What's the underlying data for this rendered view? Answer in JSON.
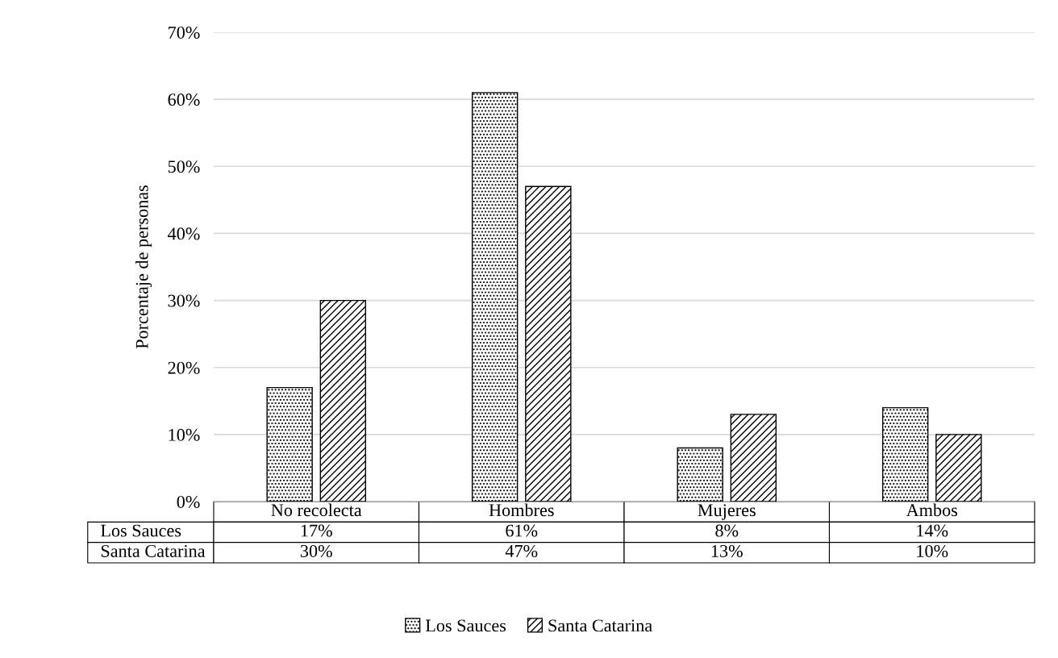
{
  "chart_data": {
    "type": "bar",
    "ylabel": "Porcentaje de personas",
    "categories": [
      "No recolecta",
      "Hombres",
      "Mujeres",
      "Ambos"
    ],
    "series": [
      {
        "name": "Los Sauces",
        "color": "#000000",
        "values": [
          17,
          61,
          8,
          14
        ],
        "value_labels": [
          "17%",
          "61%",
          "8%",
          "14%"
        ]
      },
      {
        "name": "Santa Catarina",
        "color": "#000000",
        "values": [
          30,
          47,
          13,
          10
        ],
        "value_labels": [
          "30%",
          "47%",
          "13%",
          "10%"
        ]
      }
    ],
    "ylim": [
      0,
      70
    ],
    "yticks": [
      {
        "value": 0,
        "label": "0%"
      },
      {
        "value": 10,
        "label": "10%"
      },
      {
        "value": 20,
        "label": "20%"
      },
      {
        "value": 30,
        "label": "30%"
      },
      {
        "value": 40,
        "label": "40%"
      },
      {
        "value": 50,
        "label": "50%"
      },
      {
        "value": 60,
        "label": "60%"
      },
      {
        "value": 70,
        "label": "70%"
      }
    ],
    "grid": "y",
    "legend": "bottom"
  }
}
